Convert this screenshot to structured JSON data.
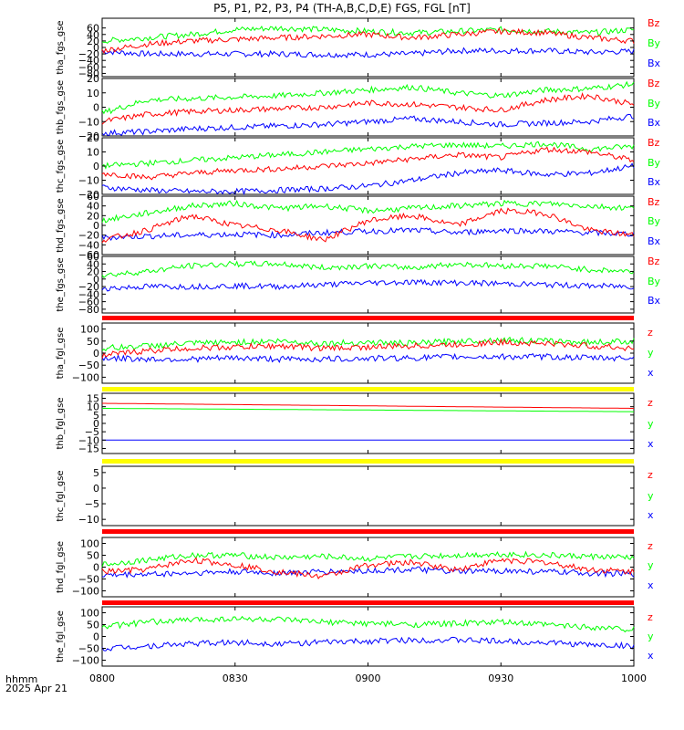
{
  "title": "P5, P1, P2, P3, P4 (TH-A,B,C,D,E) FGS, FGL [nT]",
  "footer": {
    "time_label": "hhmm",
    "date_label": "2025 Apr 21"
  },
  "colors": {
    "x": "#0000ff",
    "y": "#00ff00",
    "z": "#ff0000",
    "frame": "#000000",
    "bar_red": "#ff0000",
    "bar_yellow": "#ffff00"
  },
  "chart_data": [
    {
      "type": "line",
      "ylabel": "tha_fgs_gse",
      "yticks": [
        "60",
        "40",
        "20",
        "0",
        "−20",
        "−40",
        "−60",
        "−80"
      ],
      "ylim": [
        -90,
        90
      ],
      "legend": [
        "Bz",
        "By",
        "Bx"
      ],
      "series": [
        {
          "name": "Bx",
          "color": "#0000ff",
          "x": [
            0,
            10,
            20,
            30,
            40,
            50,
            60,
            70,
            80,
            90,
            100,
            110,
            120
          ],
          "y": [
            -12,
            -20,
            -20,
            -20,
            -20,
            -22,
            -22,
            -20,
            -10,
            -10,
            -10,
            -15,
            -12
          ]
        },
        {
          "name": "By",
          "color": "#00ff00",
          "x": [
            0,
            10,
            20,
            30,
            40,
            50,
            60,
            70,
            80,
            90,
            100,
            110,
            120
          ],
          "y": [
            20,
            30,
            40,
            55,
            60,
            55,
            50,
            45,
            50,
            55,
            50,
            45,
            55
          ]
        },
        {
          "name": "Bz",
          "color": "#ff0000",
          "x": [
            0,
            10,
            20,
            30,
            40,
            50,
            60,
            70,
            80,
            90,
            100,
            110,
            120
          ],
          "y": [
            -10,
            10,
            20,
            25,
            30,
            35,
            40,
            30,
            40,
            50,
            45,
            30,
            20
          ]
        }
      ]
    },
    {
      "type": "line",
      "ylabel": "thb_fgs_gse",
      "yticks": [
        "20",
        "10",
        "0",
        "−10",
        "−20"
      ],
      "ylim": [
        -20,
        20
      ],
      "legend": [
        "Bz",
        "By",
        "Bx"
      ],
      "series": [
        {
          "name": "Bx",
          "color": "#0000ff",
          "x": [
            0,
            10,
            20,
            30,
            40,
            50,
            60,
            70,
            80,
            90,
            100,
            110,
            120
          ],
          "y": [
            -18,
            -17,
            -15,
            -14,
            -13,
            -12,
            -10,
            -8,
            -10,
            -12,
            -11,
            -10,
            -6
          ]
        },
        {
          "name": "By",
          "color": "#00ff00",
          "x": [
            0,
            10,
            20,
            30,
            40,
            50,
            60,
            70,
            80,
            90,
            100,
            110,
            120
          ],
          "y": [
            -4,
            5,
            6,
            7,
            8,
            10,
            12,
            14,
            10,
            8,
            12,
            13,
            16
          ]
        },
        {
          "name": "Bz",
          "color": "#ff0000",
          "x": [
            0,
            10,
            20,
            30,
            40,
            50,
            60,
            70,
            80,
            90,
            100,
            110,
            120
          ],
          "y": [
            -10,
            -5,
            -3,
            -2,
            -1,
            0,
            3,
            2,
            0,
            -2,
            5,
            8,
            2
          ]
        }
      ]
    },
    {
      "type": "line",
      "ylabel": "thc_fgs_gse",
      "yticks": [
        "20",
        "10",
        "0",
        "−10",
        "−20"
      ],
      "ylim": [
        -20,
        20
      ],
      "legend": [
        "Bz",
        "By",
        "Bx"
      ],
      "series": [
        {
          "name": "Bx",
          "color": "#0000ff",
          "x": [
            0,
            10,
            20,
            30,
            40,
            50,
            60,
            70,
            80,
            90,
            100,
            110,
            120
          ],
          "y": [
            -15,
            -17,
            -18,
            -18,
            -17,
            -16,
            -14,
            -10,
            -5,
            -3,
            -6,
            -5,
            0
          ]
        },
        {
          "name": "By",
          "color": "#00ff00",
          "x": [
            0,
            10,
            20,
            30,
            40,
            50,
            60,
            70,
            80,
            90,
            100,
            110,
            120
          ],
          "y": [
            0,
            2,
            4,
            6,
            8,
            10,
            12,
            14,
            15,
            14,
            16,
            12,
            14
          ]
        },
        {
          "name": "Bz",
          "color": "#ff0000",
          "x": [
            0,
            10,
            20,
            30,
            40,
            50,
            60,
            70,
            80,
            90,
            100,
            110,
            120
          ],
          "y": [
            -5,
            -8,
            -5,
            -3,
            -2,
            0,
            2,
            5,
            8,
            6,
            12,
            10,
            4
          ]
        }
      ]
    },
    {
      "type": "line",
      "ylabel": "thd_fgs_gse",
      "yticks": [
        "60",
        "40",
        "20",
        "0",
        "−20",
        "−40",
        "−60"
      ],
      "ylim": [
        -60,
        60
      ],
      "legend": [
        "Bz",
        "By",
        "Bx"
      ],
      "series": [
        {
          "name": "Bx",
          "color": "#0000ff",
          "x": [
            0,
            10,
            20,
            30,
            40,
            50,
            60,
            70,
            80,
            90,
            100,
            110,
            120
          ],
          "y": [
            -25,
            -22,
            -20,
            -18,
            -20,
            -15,
            -12,
            -10,
            -15,
            -10,
            -12,
            -15,
            -18
          ]
        },
        {
          "name": "By",
          "color": "#00ff00",
          "x": [
            0,
            10,
            20,
            30,
            40,
            50,
            60,
            70,
            80,
            90,
            100,
            110,
            120
          ],
          "y": [
            10,
            25,
            40,
            45,
            35,
            40,
            30,
            35,
            40,
            45,
            45,
            40,
            35
          ]
        },
        {
          "name": "Bz",
          "color": "#ff0000",
          "x": [
            0,
            10,
            20,
            30,
            40,
            50,
            60,
            70,
            80,
            90,
            100,
            110,
            120
          ],
          "y": [
            -30,
            -10,
            20,
            0,
            -10,
            -30,
            10,
            20,
            0,
            30,
            25,
            -10,
            -20
          ]
        }
      ]
    },
    {
      "type": "line",
      "ylabel": "the_fgs_gse",
      "yticks": [
        "60",
        "40",
        "20",
        "0",
        "−20",
        "−40",
        "−60",
        "−80"
      ],
      "ylim": [
        -90,
        60
      ],
      "legend": [
        "Bz",
        "By",
        "Bx"
      ],
      "series": [
        {
          "name": "Bx",
          "color": "#0000ff",
          "x": [
            0,
            10,
            20,
            30,
            40,
            50,
            60,
            70,
            80,
            90,
            100,
            110,
            120
          ],
          "y": [
            -25,
            -20,
            -20,
            -18,
            -20,
            -15,
            -10,
            -8,
            -10,
            -12,
            -15,
            -18,
            -20
          ]
        },
        {
          "name": "By",
          "color": "#00ff00",
          "x": [
            0,
            10,
            20,
            30,
            40,
            50,
            60,
            70,
            80,
            90,
            100,
            110,
            120
          ],
          "y": [
            10,
            20,
            35,
            40,
            40,
            30,
            35,
            30,
            40,
            35,
            35,
            25,
            20
          ]
        }
      ]
    },
    {
      "type": "line",
      "ylabel": "tha_fgl_gse",
      "yticks": [
        "100",
        "50",
        "0",
        "−50",
        "−100"
      ],
      "ylim": [
        -125,
        125
      ],
      "legend": [
        "z",
        "y",
        "x"
      ],
      "series": [
        {
          "name": "x",
          "color": "#0000ff",
          "x": [
            0,
            10,
            20,
            30,
            40,
            50,
            60,
            70,
            80,
            90,
            100,
            110,
            120
          ],
          "y": [
            -20,
            -25,
            -25,
            -20,
            -25,
            -25,
            -22,
            -20,
            -15,
            -15,
            -15,
            -20,
            -20
          ]
        },
        {
          "name": "y",
          "color": "#00ff00",
          "x": [
            0,
            10,
            20,
            30,
            40,
            50,
            60,
            70,
            80,
            90,
            100,
            110,
            120
          ],
          "y": [
            20,
            30,
            40,
            45,
            50,
            40,
            45,
            40,
            50,
            55,
            50,
            45,
            50
          ]
        },
        {
          "name": "z",
          "color": "#ff0000",
          "x": [
            0,
            10,
            20,
            30,
            40,
            50,
            60,
            70,
            80,
            90,
            100,
            110,
            120
          ],
          "y": [
            -10,
            10,
            20,
            25,
            30,
            20,
            25,
            30,
            35,
            45,
            40,
            30,
            20
          ]
        }
      ]
    },
    {
      "type": "line",
      "ylabel": "thb_fgl_gse",
      "yticks": [
        "15",
        "10",
        "5",
        "0",
        "−5",
        "−10",
        "−15"
      ],
      "ylim": [
        -18,
        18
      ],
      "legend": [
        "z",
        "y",
        "x"
      ],
      "series": [
        {
          "name": "x",
          "color": "#0000ff",
          "x": [
            0,
            120
          ],
          "y": [
            -10,
            -10
          ]
        },
        {
          "name": "y",
          "color": "#00ff00",
          "x": [
            0,
            120
          ],
          "y": [
            9,
            7
          ]
        },
        {
          "name": "z",
          "color": "#ff0000",
          "x": [
            0,
            120
          ],
          "y": [
            12,
            9
          ]
        }
      ]
    },
    {
      "type": "line",
      "ylabel": "thc_fgl_gse",
      "yticks": [
        "5",
        "0",
        "−5",
        "−10"
      ],
      "ylim": [
        -12,
        7
      ],
      "legend": [
        "z",
        "y",
        "x"
      ],
      "series": []
    },
    {
      "type": "line",
      "ylabel": "thd_fgl_gse",
      "yticks": [
        "100",
        "50",
        "0",
        "−50",
        "−100"
      ],
      "ylim": [
        -125,
        125
      ],
      "legend": [
        "z",
        "y",
        "x"
      ],
      "series": [
        {
          "name": "x",
          "color": "#0000ff",
          "x": [
            0,
            10,
            20,
            30,
            40,
            50,
            60,
            70,
            80,
            90,
            100,
            110,
            120
          ],
          "y": [
            -35,
            -30,
            -25,
            -20,
            -25,
            -20,
            -15,
            -10,
            -20,
            -15,
            -20,
            -25,
            -30
          ]
        },
        {
          "name": "y",
          "color": "#00ff00",
          "x": [
            0,
            10,
            20,
            30,
            40,
            50,
            60,
            70,
            80,
            90,
            100,
            110,
            120
          ],
          "y": [
            10,
            30,
            50,
            50,
            40,
            45,
            35,
            45,
            50,
            55,
            50,
            45,
            40
          ]
        },
        {
          "name": "z",
          "color": "#ff0000",
          "x": [
            0,
            10,
            20,
            30,
            40,
            50,
            60,
            70,
            80,
            90,
            100,
            110,
            120
          ],
          "y": [
            -20,
            -10,
            30,
            10,
            -20,
            -40,
            10,
            20,
            -10,
            30,
            20,
            -10,
            -20
          ]
        }
      ]
    },
    {
      "type": "line",
      "ylabel": "the_fgl_gse",
      "yticks": [
        "100",
        "50",
        "0",
        "−50",
        "−100"
      ],
      "ylim": [
        -125,
        125
      ],
      "legend": [
        "z",
        "y",
        "x"
      ],
      "series": [
        {
          "name": "x",
          "color": "#0000ff",
          "x": [
            0,
            10,
            20,
            30,
            40,
            50,
            60,
            70,
            80,
            90,
            100,
            110,
            120
          ],
          "y": [
            -50,
            -40,
            -30,
            -25,
            -30,
            -25,
            -20,
            -15,
            -15,
            -20,
            -25,
            -35,
            -40
          ]
        },
        {
          "name": "y",
          "color": "#00ff00",
          "x": [
            0,
            10,
            20,
            30,
            40,
            50,
            60,
            70,
            80,
            90,
            100,
            110,
            120
          ],
          "y": [
            40,
            60,
            70,
            75,
            70,
            60,
            55,
            50,
            55,
            60,
            50,
            40,
            30
          ]
        }
      ]
    }
  ],
  "xaxis": {
    "labels": [
      "0800",
      "0830",
      "0900",
      "0930",
      "1000"
    ],
    "values": [
      0,
      30,
      60,
      90,
      120
    ],
    "range": [
      0,
      120
    ]
  }
}
